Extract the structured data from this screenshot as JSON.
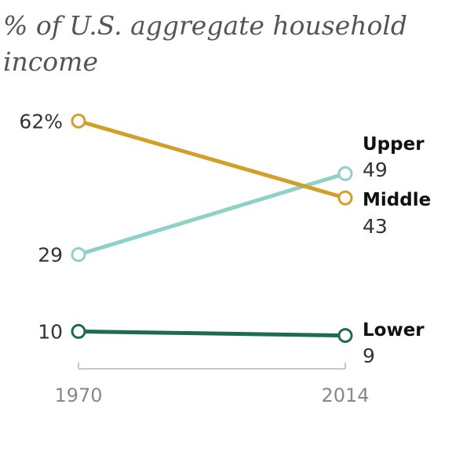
{
  "chart_data": {
    "type": "line",
    "title_line1": "% of U.S. aggregate household",
    "title_line2": "income",
    "x": [
      "1970",
      "2014"
    ],
    "series": [
      {
        "name": "Upper",
        "values": [
          29,
          49
        ],
        "start_label": "29",
        "end_label": "49",
        "color": "#8fd1c4"
      },
      {
        "name": "Middle",
        "values": [
          62,
          43
        ],
        "start_label": "62%",
        "end_label": "43",
        "color": "#d1a02a"
      },
      {
        "name": "Lower",
        "values": [
          10,
          9
        ],
        "start_label": "10",
        "end_label": "9",
        "color": "#1d6a55"
      }
    ],
    "ylim": [
      0,
      70
    ],
    "grid": false,
    "legend": "direct labels at right"
  }
}
